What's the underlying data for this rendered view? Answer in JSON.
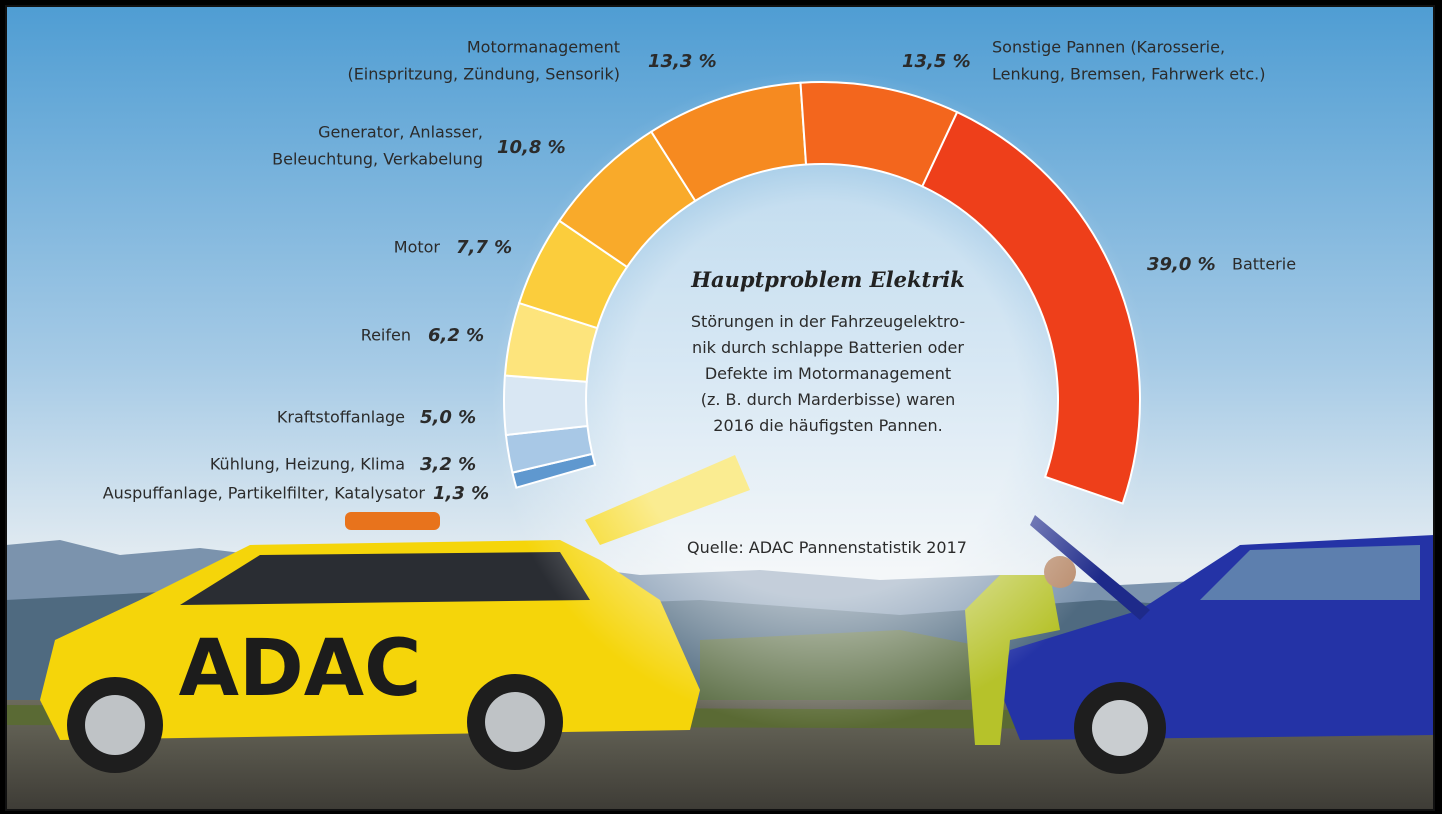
{
  "chart_data": {
    "type": "donut",
    "title": "Hauptproblem Elektrik",
    "description": [
      "Störungen in der Fahrzeugelektro-",
      "nik durch schlappe Batterien oder",
      "Defekte im Motormanagement",
      "(z. B. durch Marderbisse) waren",
      "2016 die häufigsten Pannen."
    ],
    "source": "Quelle: ADAC Pannenstatistik 2017",
    "categories": [
      [
        "Auspuffanlage, Partikelfilter, Katalysator"
      ],
      [
        "Kühlung, Heizung, Klima"
      ],
      [
        "Kraftstoffanlage"
      ],
      [
        "Reifen"
      ],
      [
        "Motor"
      ],
      [
        "Generator, Anlasser,",
        "Beleuchtung, Verkabelung"
      ],
      [
        "Motormanagement",
        "(Einspritzung, Zündung, Sensorik)"
      ],
      [
        "Sonstige Pannen (Karosserie,",
        "Lenkung, Bremsen, Fahrwerk etc.)"
      ],
      [
        "Batterie"
      ]
    ],
    "values": [
      1.3,
      3.2,
      5.0,
      6.2,
      7.7,
      10.8,
      13.3,
      13.5,
      39.0
    ],
    "value_labels": [
      "1,3 %",
      "3,2 %",
      "5,0 %",
      "6,2 %",
      "7,7 %",
      "10,8 %",
      "13,3 %",
      "13,5 %",
      "39,0 %"
    ],
    "colors": [
      "#5f98cf",
      "#a8c8e6",
      "#d9e7f3",
      "#fde47c",
      "#fbcd3c",
      "#f9aa2a",
      "#f68a20",
      "#f3661d",
      "#ee3f1a"
    ]
  }
}
